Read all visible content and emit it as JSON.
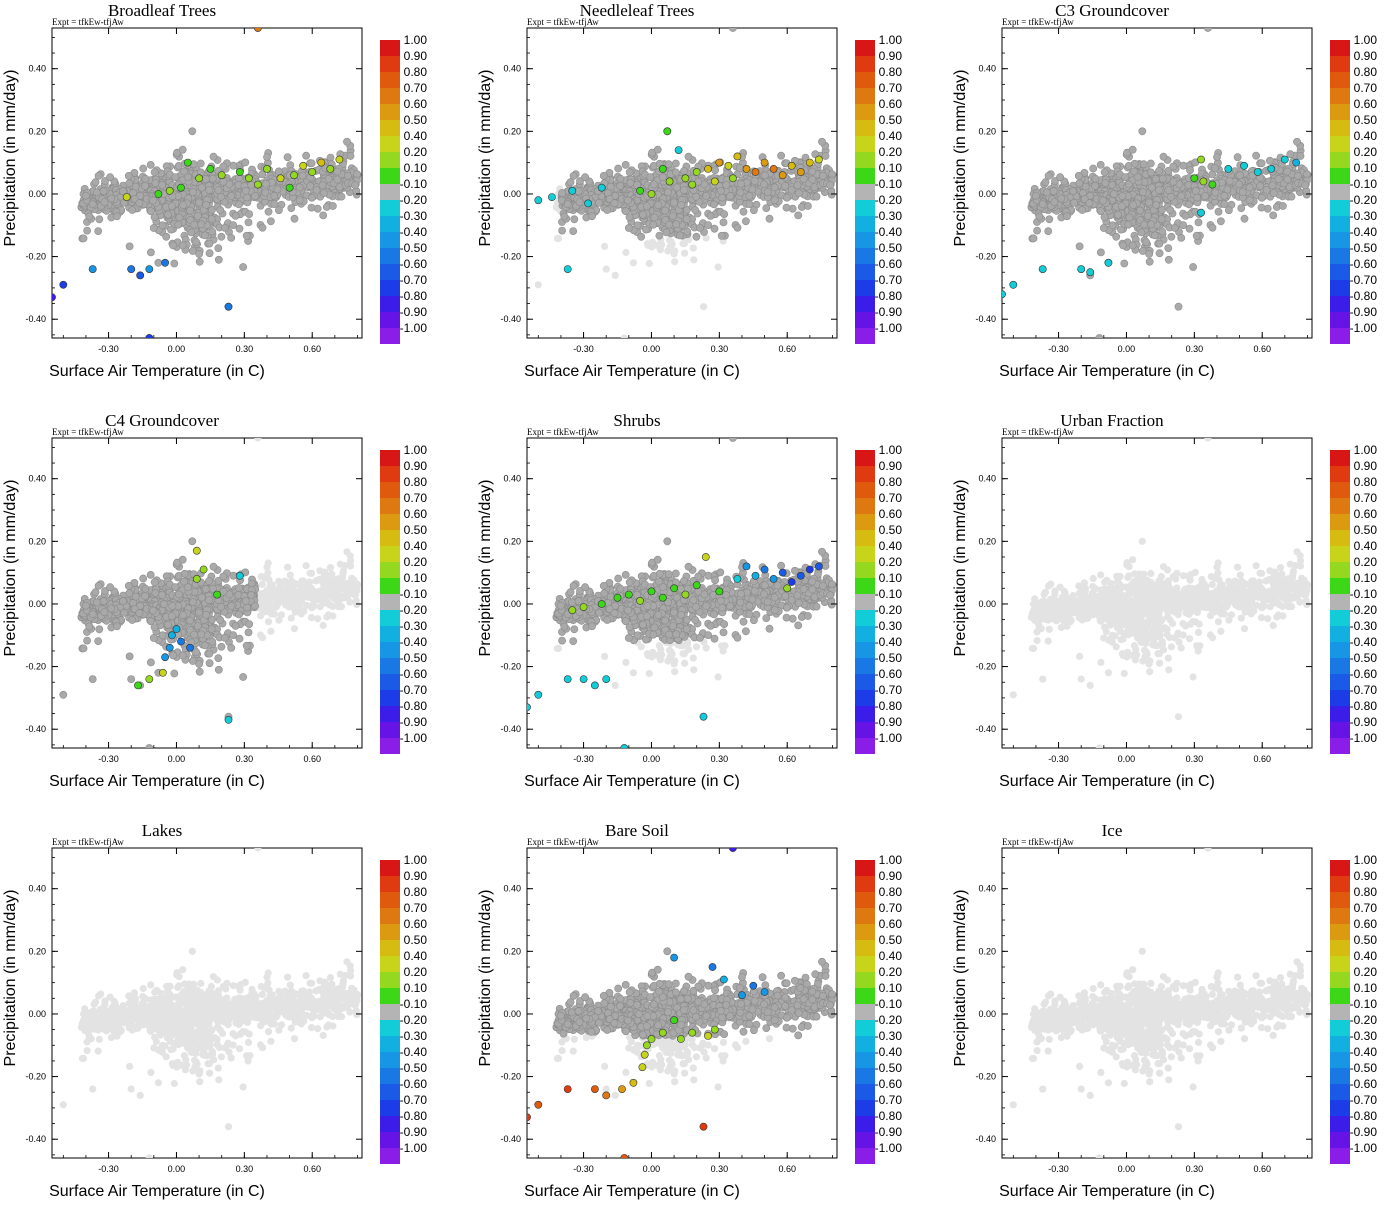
{
  "figure": {
    "experiment_label": "Expt = tfkEw-tfjAw",
    "xlabel": "Surface Air Temperature (in C)",
    "ylabel": "Precipitation (in mm/day)",
    "xticks": [
      "-0.30",
      "0.00",
      "0.30",
      "0.60"
    ],
    "yticks": [
      "-0.40",
      "-0.20",
      "0.00",
      "0.20",
      "0.40"
    ],
    "xlim": [
      -0.55,
      0.82
    ],
    "ylim": [
      -0.46,
      0.53
    ],
    "colorbar_labels": [
      "1.00",
      "0.90",
      "0.80",
      "0.70",
      "0.60",
      "0.50",
      "0.40",
      "0.20",
      "0.10",
      "-0.10",
      "-0.20",
      "-0.30",
      "-0.40",
      "-0.50",
      "-0.60",
      "-0.70",
      "-0.80",
      "-0.90",
      "-1.00"
    ],
    "colorbar_colors": [
      "#d81616",
      "#df3a10",
      "#e05a0e",
      "#de7810",
      "#dc9a10",
      "#d6bc10",
      "#c8d41a",
      "#94d820",
      "#3cd818",
      "#b4b4b4",
      "#12ccd8",
      "#12b0e0",
      "#1696e4",
      "#1a78e4",
      "#1a5ae6",
      "#1c3ce8",
      "#3c1ce8",
      "#6614e6",
      "#8a1ee8"
    ],
    "colors": {
      "nodata": "#e3e3e3",
      "neutral": "#a9a9a9",
      "background": "#ffffff"
    }
  },
  "chart_data": [
    {
      "type": "scatter",
      "title": "Broadleaf Trees",
      "colored_points": [
        {
          "x": 0.36,
          "y": 0.53,
          "c": 0.7
        },
        {
          "x": -0.55,
          "y": -0.33,
          "c": -0.8
        },
        {
          "x": -0.5,
          "y": -0.29,
          "c": -0.7
        },
        {
          "x": -0.37,
          "y": -0.24,
          "c": -0.4
        },
        {
          "x": -0.2,
          "y": -0.24,
          "c": -0.5
        },
        {
          "x": -0.16,
          "y": -0.26,
          "c": -0.6
        },
        {
          "x": -0.12,
          "y": -0.24,
          "c": -0.4
        },
        {
          "x": -0.05,
          "y": -0.22,
          "c": -0.5
        },
        {
          "x": 0.23,
          "y": -0.36,
          "c": -0.5
        },
        {
          "x": -0.12,
          "y": -0.46,
          "c": -0.7
        },
        {
          "x": -0.22,
          "y": -0.01,
          "c": 0.4
        },
        {
          "x": -0.08,
          "y": 0.0,
          "c": 0.1
        },
        {
          "x": -0.03,
          "y": 0.01,
          "c": 0.2
        },
        {
          "x": 0.02,
          "y": 0.02,
          "c": 0.1
        },
        {
          "x": 0.05,
          "y": 0.1,
          "c": 0.1
        },
        {
          "x": 0.1,
          "y": 0.05,
          "c": 0.2
        },
        {
          "x": 0.15,
          "y": 0.08,
          "c": 0.1
        },
        {
          "x": 0.2,
          "y": 0.06,
          "c": 0.3
        },
        {
          "x": 0.28,
          "y": 0.07,
          "c": 0.1
        },
        {
          "x": 0.32,
          "y": 0.05,
          "c": 0.3
        },
        {
          "x": 0.4,
          "y": 0.08,
          "c": 0.2
        },
        {
          "x": 0.46,
          "y": 0.05,
          "c": 0.4
        },
        {
          "x": 0.52,
          "y": 0.06,
          "c": 0.2
        },
        {
          "x": 0.56,
          "y": 0.09,
          "c": 0.4
        },
        {
          "x": 0.6,
          "y": 0.07,
          "c": 0.3
        },
        {
          "x": 0.64,
          "y": 0.1,
          "c": 0.5
        },
        {
          "x": 0.68,
          "y": 0.08,
          "c": 0.2
        },
        {
          "x": 0.72,
          "y": 0.11,
          "c": 0.4
        },
        {
          "x": 0.5,
          "y": 0.02,
          "c": 0.1
        },
        {
          "x": 0.36,
          "y": 0.03,
          "c": 0.2
        }
      ]
    },
    {
      "type": "scatter",
      "title": "Needleleaf Trees",
      "colored_points": [
        {
          "x": -0.37,
          "y": -0.24,
          "c": -0.2
        },
        {
          "x": -0.5,
          "y": -0.02,
          "c": -0.2
        },
        {
          "x": -0.44,
          "y": -0.01,
          "c": -0.2
        },
        {
          "x": -0.35,
          "y": 0.01,
          "c": -0.2
        },
        {
          "x": -0.28,
          "y": -0.03,
          "c": -0.2
        },
        {
          "x": -0.22,
          "y": 0.02,
          "c": -0.2
        },
        {
          "x": 0.07,
          "y": 0.2,
          "c": 0.1
        },
        {
          "x": 0.12,
          "y": 0.14,
          "c": -0.2
        },
        {
          "x": 0.05,
          "y": 0.08,
          "c": 0.1
        },
        {
          "x": 0.08,
          "y": 0.04,
          "c": 0.2
        },
        {
          "x": 0.15,
          "y": 0.05,
          "c": 0.3
        },
        {
          "x": 0.2,
          "y": 0.07,
          "c": 0.2
        },
        {
          "x": 0.25,
          "y": 0.08,
          "c": 0.5
        },
        {
          "x": 0.3,
          "y": 0.1,
          "c": 0.6
        },
        {
          "x": 0.34,
          "y": 0.09,
          "c": 0.4
        },
        {
          "x": 0.38,
          "y": 0.12,
          "c": 0.5
        },
        {
          "x": 0.42,
          "y": 0.08,
          "c": 0.6
        },
        {
          "x": 0.46,
          "y": 0.07,
          "c": 0.7
        },
        {
          "x": 0.5,
          "y": 0.1,
          "c": 0.6
        },
        {
          "x": 0.54,
          "y": 0.08,
          "c": 0.7
        },
        {
          "x": 0.58,
          "y": 0.06,
          "c": 0.6
        },
        {
          "x": 0.62,
          "y": 0.09,
          "c": 0.5
        },
        {
          "x": 0.66,
          "y": 0.07,
          "c": 0.6
        },
        {
          "x": 0.7,
          "y": 0.1,
          "c": 0.5
        },
        {
          "x": 0.74,
          "y": 0.11,
          "c": 0.4
        },
        {
          "x": -0.05,
          "y": 0.01,
          "c": 0.1
        },
        {
          "x": 0.0,
          "y": 0.0,
          "c": 0.2
        },
        {
          "x": 0.18,
          "y": 0.03,
          "c": 0.3
        },
        {
          "x": 0.28,
          "y": 0.04,
          "c": 0.4
        },
        {
          "x": 0.36,
          "y": 0.05,
          "c": 0.3
        }
      ]
    },
    {
      "type": "scatter",
      "title": "C3 Groundcover",
      "colored_points": [
        {
          "x": -0.55,
          "y": -0.32,
          "c": -0.2
        },
        {
          "x": -0.5,
          "y": -0.29,
          "c": -0.2
        },
        {
          "x": -0.37,
          "y": -0.24,
          "c": -0.2
        },
        {
          "x": -0.2,
          "y": -0.24,
          "c": -0.2
        },
        {
          "x": -0.16,
          "y": -0.25,
          "c": -0.2
        },
        {
          "x": -0.08,
          "y": -0.22,
          "c": -0.2
        },
        {
          "x": 0.33,
          "y": 0.11,
          "c": 0.3
        },
        {
          "x": 0.3,
          "y": 0.05,
          "c": 0.1
        },
        {
          "x": 0.34,
          "y": 0.04,
          "c": 0.2
        },
        {
          "x": 0.38,
          "y": 0.03,
          "c": 0.1
        },
        {
          "x": 0.33,
          "y": -0.06,
          "c": -0.2
        },
        {
          "x": 0.45,
          "y": 0.08,
          "c": -0.2
        },
        {
          "x": 0.52,
          "y": 0.09,
          "c": -0.2
        },
        {
          "x": 0.58,
          "y": 0.07,
          "c": -0.2
        },
        {
          "x": 0.64,
          "y": 0.08,
          "c": -0.2
        },
        {
          "x": 0.7,
          "y": 0.11,
          "c": -0.2
        },
        {
          "x": 0.75,
          "y": 0.1,
          "c": -0.3
        }
      ]
    },
    {
      "type": "scatter",
      "title": "C4 Groundcover",
      "colored_points": [
        {
          "x": 0.09,
          "y": 0.17,
          "c": 0.4
        },
        {
          "x": 0.09,
          "y": 0.08,
          "c": 0.2
        },
        {
          "x": 0.12,
          "y": 0.11,
          "c": 0.2
        },
        {
          "x": 0.18,
          "y": 0.03,
          "c": 0.1
        },
        {
          "x": 0.28,
          "y": 0.09,
          "c": -0.2
        },
        {
          "x": 0.23,
          "y": -0.37,
          "c": -0.2
        },
        {
          "x": -0.17,
          "y": -0.26,
          "c": 0.1
        },
        {
          "x": -0.12,
          "y": -0.24,
          "c": 0.2
        },
        {
          "x": -0.06,
          "y": -0.22,
          "c": 0.4
        },
        {
          "x": -0.05,
          "y": -0.17,
          "c": -0.4
        },
        {
          "x": -0.03,
          "y": -0.14,
          "c": -0.4
        },
        {
          "x": -0.02,
          "y": -0.1,
          "c": -0.3
        },
        {
          "x": 0.02,
          "y": -0.12,
          "c": -0.5
        },
        {
          "x": 0.06,
          "y": -0.14,
          "c": -0.5
        },
        {
          "x": 0.0,
          "y": -0.08,
          "c": -0.3
        }
      ]
    },
    {
      "type": "scatter",
      "title": "Shrubs",
      "colored_points": [
        {
          "x": -0.55,
          "y": -0.33,
          "c": -0.2
        },
        {
          "x": -0.5,
          "y": -0.29,
          "c": -0.2
        },
        {
          "x": -0.37,
          "y": -0.24,
          "c": -0.2
        },
        {
          "x": -0.3,
          "y": -0.24,
          "c": -0.2
        },
        {
          "x": -0.25,
          "y": -0.26,
          "c": -0.2
        },
        {
          "x": -0.2,
          "y": -0.24,
          "c": -0.2
        },
        {
          "x": 0.23,
          "y": -0.36,
          "c": -0.2
        },
        {
          "x": -0.12,
          "y": -0.46,
          "c": -0.2
        },
        {
          "x": -0.35,
          "y": -0.02,
          "c": 0.3
        },
        {
          "x": -0.3,
          "y": -0.01,
          "c": 0.2
        },
        {
          "x": -0.22,
          "y": 0.0,
          "c": 0.1
        },
        {
          "x": -0.15,
          "y": 0.02,
          "c": 0.1
        },
        {
          "x": -0.1,
          "y": 0.03,
          "c": 0.1
        },
        {
          "x": -0.05,
          "y": 0.01,
          "c": 0.2
        },
        {
          "x": 0.0,
          "y": 0.04,
          "c": 0.1
        },
        {
          "x": 0.05,
          "y": 0.02,
          "c": 0.1
        },
        {
          "x": 0.1,
          "y": 0.05,
          "c": 0.1
        },
        {
          "x": 0.15,
          "y": 0.03,
          "c": 0.2
        },
        {
          "x": 0.2,
          "y": 0.06,
          "c": 0.1
        },
        {
          "x": 0.24,
          "y": 0.15,
          "c": 0.4
        },
        {
          "x": 0.38,
          "y": 0.08,
          "c": -0.2
        },
        {
          "x": 0.42,
          "y": 0.12,
          "c": -0.4
        },
        {
          "x": 0.46,
          "y": 0.09,
          "c": -0.3
        },
        {
          "x": 0.5,
          "y": 0.11,
          "c": -0.5
        },
        {
          "x": 0.54,
          "y": 0.08,
          "c": -0.4
        },
        {
          "x": 0.58,
          "y": 0.1,
          "c": -0.6
        },
        {
          "x": 0.62,
          "y": 0.07,
          "c": -0.7
        },
        {
          "x": 0.66,
          "y": 0.09,
          "c": -0.6
        },
        {
          "x": 0.7,
          "y": 0.11,
          "c": -0.7
        },
        {
          "x": 0.74,
          "y": 0.12,
          "c": -0.6
        },
        {
          "x": 0.3,
          "y": 0.04,
          "c": 0.1
        },
        {
          "x": 0.6,
          "y": 0.05,
          "c": 0.2
        }
      ]
    },
    {
      "type": "scatter",
      "title": "Urban Fraction",
      "colored_points": []
    },
    {
      "type": "scatter",
      "title": "Lakes",
      "colored_points": []
    },
    {
      "type": "scatter",
      "title": "Bare Soil",
      "colored_points": [
        {
          "x": 0.36,
          "y": 0.53,
          "c": -0.8
        },
        {
          "x": -0.55,
          "y": -0.33,
          "c": 0.9
        },
        {
          "x": -0.5,
          "y": -0.29,
          "c": 0.8
        },
        {
          "x": -0.37,
          "y": -0.24,
          "c": 0.9
        },
        {
          "x": -0.25,
          "y": -0.24,
          "c": 0.8
        },
        {
          "x": -0.2,
          "y": -0.26,
          "c": 0.7
        },
        {
          "x": -0.13,
          "y": -0.24,
          "c": 0.6
        },
        {
          "x": -0.08,
          "y": -0.22,
          "c": 0.5
        },
        {
          "x": 0.23,
          "y": -0.36,
          "c": 0.9
        },
        {
          "x": -0.12,
          "y": -0.46,
          "c": 0.8
        },
        {
          "x": -0.04,
          "y": -0.17,
          "c": 0.4
        },
        {
          "x": -0.03,
          "y": -0.13,
          "c": 0.4
        },
        {
          "x": -0.02,
          "y": -0.1,
          "c": 0.3
        },
        {
          "x": 0.0,
          "y": -0.08,
          "c": 0.2
        },
        {
          "x": 0.05,
          "y": -0.06,
          "c": 0.2
        },
        {
          "x": 0.1,
          "y": -0.02,
          "c": 0.1
        },
        {
          "x": 0.13,
          "y": -0.08,
          "c": 0.3
        },
        {
          "x": 0.18,
          "y": -0.06,
          "c": 0.2
        },
        {
          "x": 0.28,
          "y": -0.05,
          "c": 0.3
        },
        {
          "x": 0.25,
          "y": -0.07,
          "c": 0.4
        },
        {
          "x": 0.27,
          "y": 0.15,
          "c": -0.5
        },
        {
          "x": 0.1,
          "y": 0.18,
          "c": -0.4
        },
        {
          "x": 0.32,
          "y": 0.11,
          "c": -0.3
        },
        {
          "x": 0.4,
          "y": 0.06,
          "c": -0.4
        },
        {
          "x": 0.45,
          "y": 0.09,
          "c": -0.5
        },
        {
          "x": 0.5,
          "y": 0.07,
          "c": -0.4
        }
      ]
    },
    {
      "type": "scatter",
      "title": "Ice",
      "colored_points": []
    }
  ]
}
